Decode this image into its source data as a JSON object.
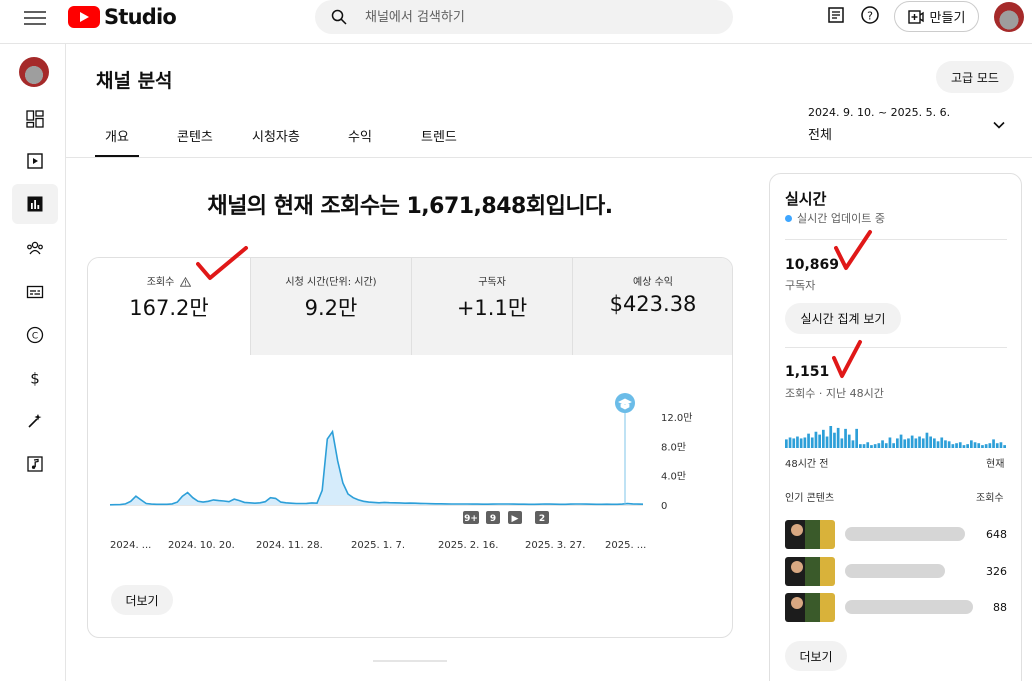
{
  "header": {
    "brand": "Studio",
    "search_placeholder": "채널에서 검색하기",
    "create_label": "만들기"
  },
  "rail": {
    "items": [
      "dashboard-icon",
      "content-icon",
      "analytics-icon",
      "community-icon",
      "subtitles-icon",
      "copyright-icon",
      "earn-icon",
      "customization-icon",
      "audio-library-icon"
    ],
    "active_index": 2
  },
  "page": {
    "title": "채널 분석",
    "advanced_mode": "고급 모드",
    "tabs": [
      {
        "label": "개요",
        "active": true
      },
      {
        "label": "콘텐츠",
        "active": false
      },
      {
        "label": "시청자층",
        "active": false
      },
      {
        "label": "수익",
        "active": false
      },
      {
        "label": "트렌드",
        "active": false
      }
    ],
    "date_range": "2024. 9. 10. ~ 2025. 5. 6.",
    "date_label": "전체",
    "headline": "채널의 현재 조회수는 1,671,848회입니다."
  },
  "metrics": [
    {
      "label": "조회수",
      "value": "167.2만",
      "warning": true
    },
    {
      "label": "시청 시간(단위: 시간)",
      "value": "9.2만"
    },
    {
      "label": "구독자",
      "value": "+1.1만"
    },
    {
      "label": "예상 수익",
      "value": "$423.38"
    }
  ],
  "chart_data": {
    "type": "area",
    "x_tick_labels": [
      "2024. ...",
      "2024. 10. 20.",
      "2024. 11. 28.",
      "2025. 1. 7.",
      "2025. 2. 16.",
      "2025. 3. 27.",
      "2025. ..."
    ],
    "y_tick_labels": [
      "12.0만",
      "8.0만",
      "4.0만",
      "0"
    ],
    "ylim": [
      0,
      120000
    ],
    "series_color": "#3ea6ff",
    "values": [
      300,
      400,
      600,
      1500,
      5000,
      12000,
      7000,
      2000,
      1200,
      1000,
      900,
      1000,
      1500,
      4000,
      12000,
      17000,
      10000,
      5000,
      4000,
      5000,
      7000,
      6000,
      5500,
      4500,
      8000,
      6000,
      3500,
      3000,
      2500,
      3000,
      4500,
      10000,
      9000,
      4000,
      3000,
      2500,
      2000,
      2000,
      2200,
      2800,
      2500,
      20000,
      90000,
      100000,
      60000,
      30000,
      15000,
      10000,
      7000,
      5000,
      4000,
      3500,
      3000,
      3500,
      3200,
      3000,
      2800,
      2500,
      2600,
      2400,
      2200,
      2000,
      1800,
      1700,
      1600,
      1500,
      1400,
      1400,
      1300,
      1300,
      1200,
      1200,
      1100,
      1100,
      1200,
      1300,
      1400,
      1300,
      1200,
      1100,
      1100,
      1000,
      1000,
      1100,
      1300,
      1200,
      1100,
      1000,
      1000,
      1200,
      1400,
      1300,
      1200,
      1100,
      1000,
      1000,
      1100,
      1000,
      1000,
      1200,
      2000,
      1500,
      1200,
      1100
    ],
    "markers": [
      "9+",
      "9",
      "▶",
      "2"
    ]
  },
  "more_label": "더보기",
  "realtime": {
    "title": "실시간",
    "live_label": "실시간 업데이트 중",
    "subscribers": "10,869",
    "subscribers_label": "구독자",
    "live_count_btn": "실시간 집계 보기",
    "views": "1,151",
    "views_label": "조회수 · 지난 48시간",
    "bars": [
      9,
      11,
      10,
      12,
      10,
      11,
      15,
      11,
      17,
      14,
      19,
      12,
      23,
      16,
      21,
      10,
      20,
      14,
      8,
      20,
      4,
      4,
      6,
      3,
      4,
      5,
      8,
      5,
      11,
      5,
      10,
      14,
      9,
      10,
      13,
      10,
      12,
      10,
      16,
      12,
      10,
      7,
      11,
      8,
      7,
      4,
      5,
      6,
      3,
      4,
      8,
      6,
      5,
      3,
      4,
      5,
      9,
      5,
      6,
      3
    ],
    "axis_left": "48시간 전",
    "axis_right": "현재",
    "popular_header": "인기 콘텐츠",
    "popular_col": "조회수",
    "popular": [
      {
        "count": "648"
      },
      {
        "count": "326"
      },
      {
        "count": "88"
      }
    ],
    "more_label": "더보기"
  }
}
